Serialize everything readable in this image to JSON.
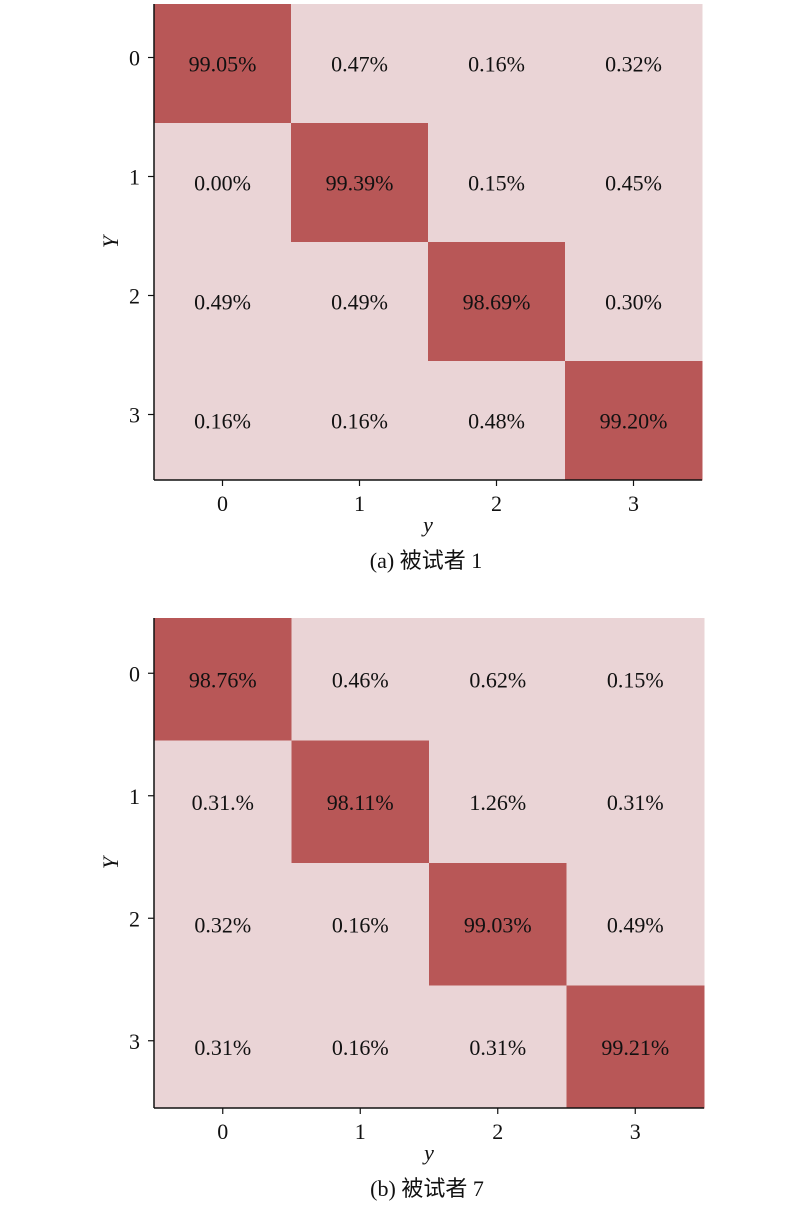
{
  "colors": {
    "high": "#b85757",
    "low": "#ead4d6",
    "axis": "#111111"
  },
  "chart_data": [
    {
      "type": "heatmap",
      "caption": "(a) 被试者 1",
      "xlabel": "y",
      "ylabel": "Y",
      "x_ticks": [
        "0",
        "1",
        "2",
        "3"
      ],
      "y_ticks": [
        "0",
        "1",
        "2",
        "3"
      ],
      "values": [
        [
          99.05,
          0.47,
          0.16,
          0.32
        ],
        [
          0.0,
          99.39,
          0.15,
          0.45
        ],
        [
          0.49,
          0.49,
          98.69,
          0.3
        ],
        [
          0.16,
          0.16,
          0.48,
          99.2
        ]
      ],
      "labels": [
        [
          "99.05%",
          "0.47%",
          "0.16%",
          "0.32%"
        ],
        [
          "0.00%",
          "99.39%",
          "0.15%",
          "0.45%"
        ],
        [
          "0.49%",
          "0.49%",
          "98.69%",
          "0.30%"
        ],
        [
          "0.16%",
          "0.16%",
          "0.48%",
          "99.20%"
        ]
      ]
    },
    {
      "type": "heatmap",
      "caption": "(b) 被试者 7",
      "xlabel": "y",
      "ylabel": "Y",
      "x_ticks": [
        "0",
        "1",
        "2",
        "3"
      ],
      "y_ticks": [
        "0",
        "1",
        "2",
        "3"
      ],
      "values": [
        [
          98.76,
          0.46,
          0.62,
          0.15
        ],
        [
          0.31,
          98.11,
          1.26,
          0.31
        ],
        [
          0.32,
          0.16,
          99.03,
          0.49
        ],
        [
          0.31,
          0.16,
          0.31,
          99.21
        ]
      ],
      "labels": [
        [
          "98.76%",
          "0.46%",
          "0.62%",
          "0.15%"
        ],
        [
          "0.31.%",
          "98.11%",
          "1.26%",
          "0.31%"
        ],
        [
          "0.32%",
          "0.16%",
          "99.03%",
          "0.49%"
        ],
        [
          "0.31%",
          "0.16%",
          "0.31%",
          "99.21%"
        ]
      ]
    }
  ]
}
